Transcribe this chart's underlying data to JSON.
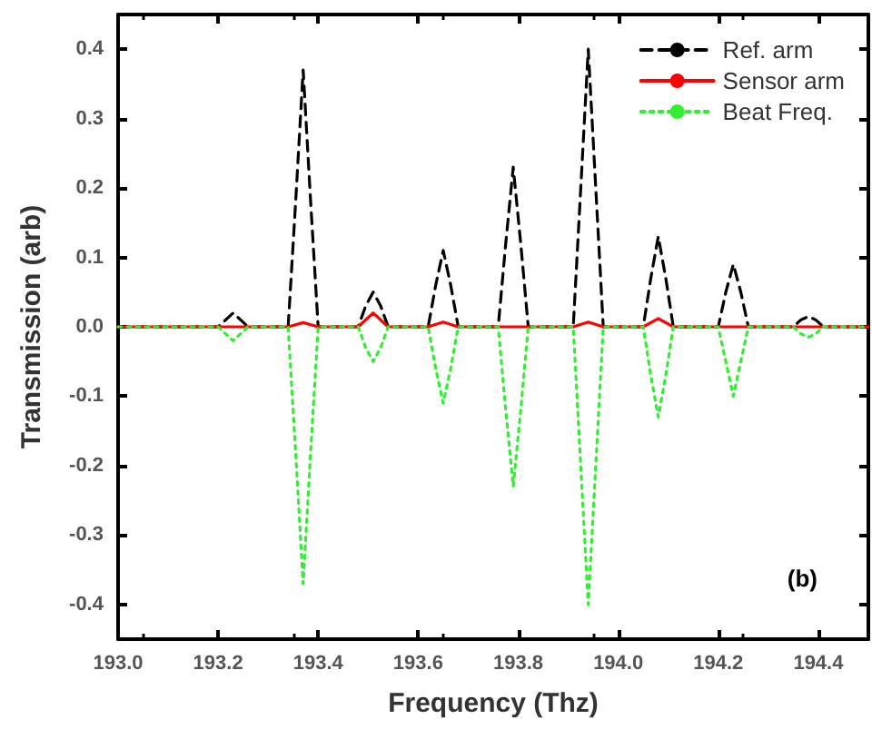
{
  "chart_data": {
    "type": "line",
    "xlabel": "Frequency (Thz)",
    "ylabel": "Transmission (arb)",
    "annotations": [
      "(b)"
    ],
    "xlim": [
      193.0,
      194.5
    ],
    "ylim": [
      -0.45,
      0.45
    ],
    "xticks": [
      {
        "value": 193.0,
        "label": "193.0"
      },
      {
        "value": 193.2,
        "label": "193.2"
      },
      {
        "value": 193.4,
        "label": "193.4"
      },
      {
        "value": 193.6,
        "label": "193.6"
      },
      {
        "value": 193.8,
        "label": "193.8"
      },
      {
        "value": 194.0,
        "label": "194.0"
      },
      {
        "value": 194.2,
        "label": "194.2"
      },
      {
        "value": 194.4,
        "label": "194.4"
      }
    ],
    "yticks": [
      {
        "value": -0.4,
        "label": "-0.4"
      },
      {
        "value": -0.3,
        "label": "-0.3"
      },
      {
        "value": -0.2,
        "label": "-0.2"
      },
      {
        "value": -0.1,
        "label": "-0.1"
      },
      {
        "value": 0.0,
        "label": "0.0"
      },
      {
        "value": 0.1,
        "label": "0.1"
      },
      {
        "value": 0.2,
        "label": "0.2"
      },
      {
        "value": 0.3,
        "label": "0.3"
      },
      {
        "value": 0.4,
        "label": "0.4"
      }
    ],
    "grid": false,
    "legend": "top right",
    "marker": "none",
    "series": [
      {
        "name": "Ref. arm",
        "color": "#000000",
        "line_style": "dashed",
        "x": [
          193.0,
          193.2,
          193.215,
          193.23,
          193.245,
          193.26,
          193.34,
          193.355,
          193.37,
          193.385,
          193.4,
          193.48,
          193.495,
          193.51,
          193.525,
          193.54,
          193.62,
          193.635,
          193.65,
          193.665,
          193.68,
          193.76,
          193.775,
          193.79,
          193.805,
          193.82,
          193.91,
          193.925,
          193.94,
          193.955,
          193.97,
          194.05,
          194.065,
          194.08,
          194.095,
          194.11,
          194.2,
          194.215,
          194.23,
          194.245,
          194.26,
          194.35,
          194.365,
          194.38,
          194.395,
          194.41,
          194.5
        ],
        "values": [
          0,
          0,
          0.01,
          0.02,
          0.01,
          0,
          0,
          0.18,
          0.37,
          0.18,
          0,
          0,
          0.03,
          0.05,
          0.03,
          0,
          0,
          0.06,
          0.11,
          0.06,
          0,
          0,
          0.12,
          0.23,
          0.12,
          0,
          0,
          0.2,
          0.4,
          0.2,
          0,
          0,
          0.07,
          0.13,
          0.07,
          0,
          0,
          0.05,
          0.09,
          0.05,
          0,
          0,
          0.01,
          0.015,
          0.01,
          0,
          0
        ]
      },
      {
        "name": "Sensor arm",
        "color": "#ff0000",
        "line_style": "solid",
        "x": [
          193.0,
          193.34,
          193.37,
          193.4,
          193.48,
          193.51,
          193.54,
          193.62,
          193.65,
          193.68,
          193.91,
          193.94,
          193.97,
          194.05,
          194.08,
          194.11,
          194.5
        ],
        "values": [
          0,
          0,
          0.006,
          0,
          0,
          0.02,
          0,
          0,
          0.007,
          0,
          0,
          0.007,
          0,
          0,
          0.012,
          0,
          0
        ]
      },
      {
        "name": "Beat Freq.",
        "color": "#33ee33",
        "line_style": "dotted",
        "x": [
          193.0,
          193.2,
          193.215,
          193.23,
          193.245,
          193.26,
          193.34,
          193.355,
          193.37,
          193.385,
          193.4,
          193.48,
          193.495,
          193.51,
          193.525,
          193.54,
          193.62,
          193.635,
          193.65,
          193.665,
          193.68,
          193.76,
          193.775,
          193.79,
          193.805,
          193.82,
          193.91,
          193.925,
          193.94,
          193.955,
          193.97,
          194.05,
          194.065,
          194.08,
          194.095,
          194.11,
          194.2,
          194.215,
          194.23,
          194.245,
          194.26,
          194.35,
          194.365,
          194.38,
          194.395,
          194.41,
          194.5
        ],
        "values": [
          0,
          0,
          -0.01,
          -0.02,
          -0.01,
          0,
          0,
          -0.18,
          -0.37,
          -0.18,
          0,
          0,
          -0.03,
          -0.05,
          -0.03,
          0,
          0,
          -0.06,
          -0.11,
          -0.06,
          0,
          0,
          -0.12,
          -0.23,
          -0.12,
          0,
          0,
          -0.2,
          -0.4,
          -0.2,
          0,
          0,
          -0.07,
          -0.13,
          -0.07,
          0,
          0,
          -0.05,
          -0.1,
          -0.05,
          0,
          0,
          -0.01,
          -0.015,
          -0.01,
          0,
          0
        ]
      }
    ]
  }
}
